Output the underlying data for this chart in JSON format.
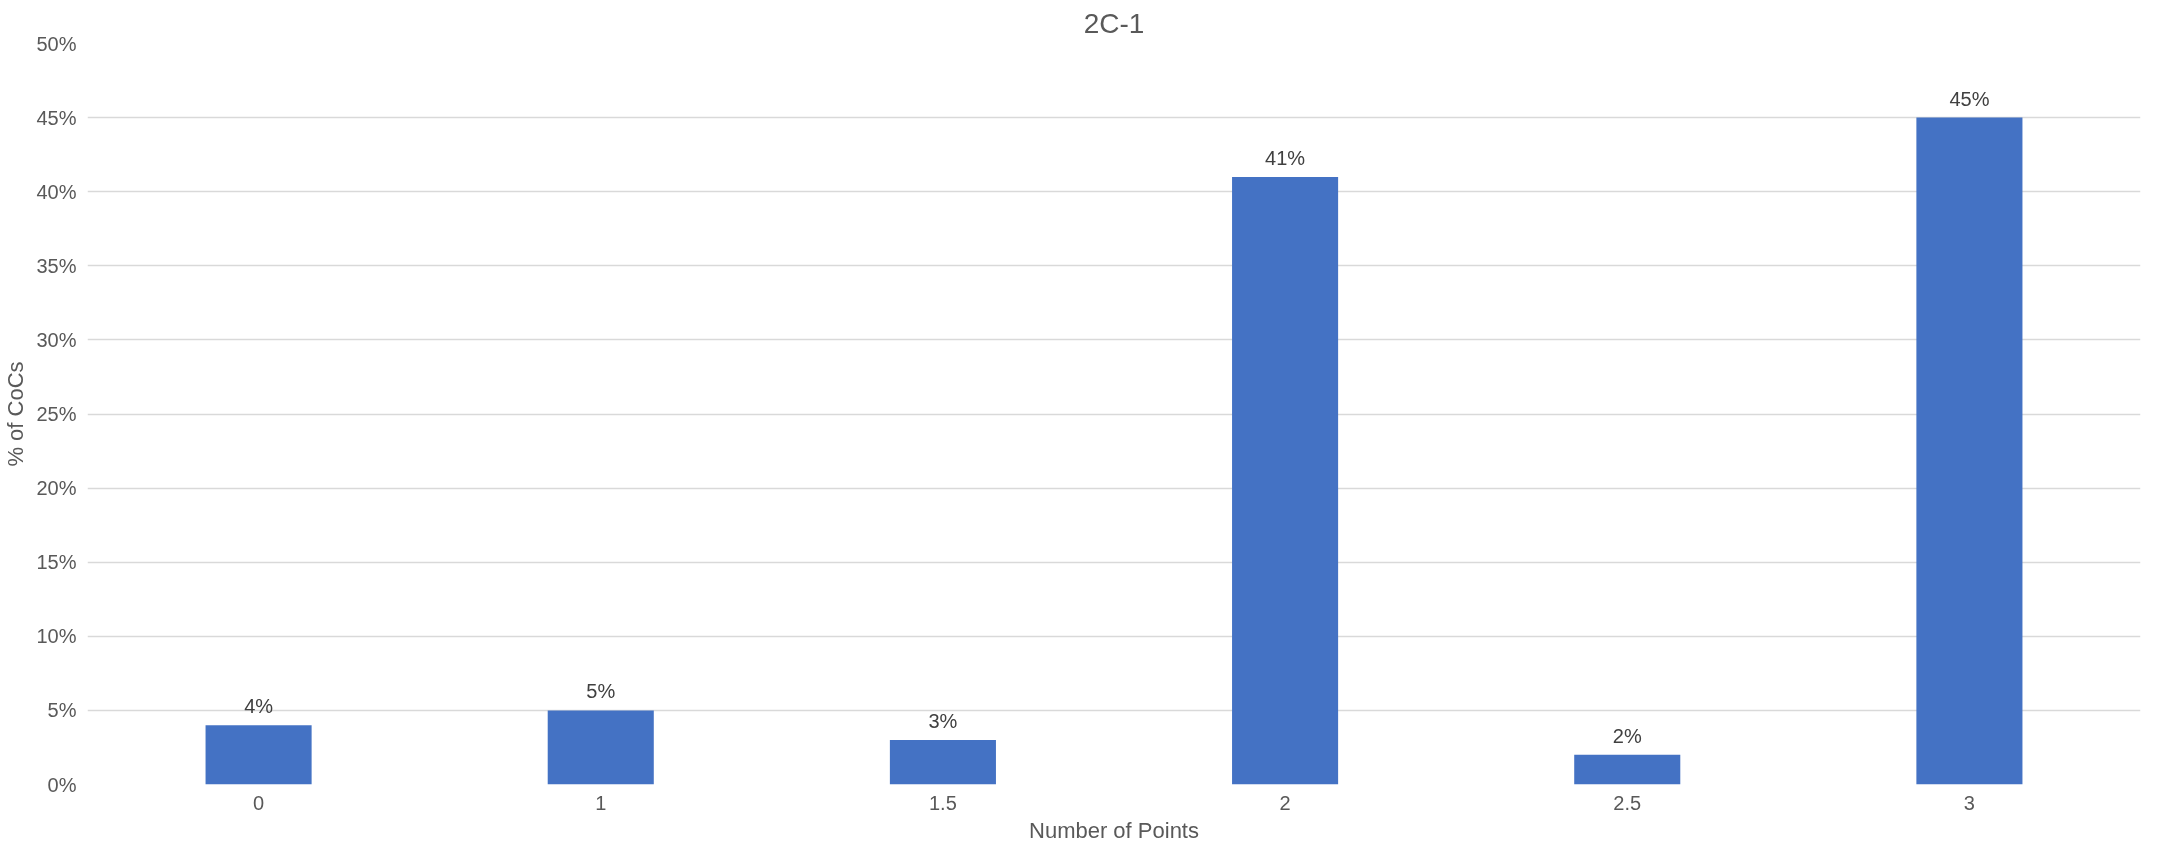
{
  "chart_data": {
    "type": "bar",
    "title": "2C-1",
    "xlabel": "Number of Points",
    "ylabel": "% of CoCs",
    "categories": [
      "0",
      "1",
      "1.5",
      "2",
      "2.5",
      "3"
    ],
    "values": [
      4,
      5,
      3,
      41,
      2,
      45
    ],
    "color": "#4472c4",
    "value_labels": [
      "4%",
      "5%",
      "3%",
      "41%",
      "2%",
      "45%"
    ],
    "ylim": [
      0,
      50
    ],
    "yticks": [
      {
        "value": 0,
        "label": "0%"
      },
      {
        "value": 5,
        "label": "5%"
      },
      {
        "value": 10,
        "label": "10%"
      },
      {
        "value": 15,
        "label": "15%"
      },
      {
        "value": 20,
        "label": "20%"
      },
      {
        "value": 25,
        "label": "25%"
      },
      {
        "value": 30,
        "label": "30%"
      },
      {
        "value": 35,
        "label": "35%"
      },
      {
        "value": 40,
        "label": "40%"
      },
      {
        "value": 45,
        "label": "45%"
      },
      {
        "value": 50,
        "label": "50%"
      }
    ],
    "grid": "y"
  }
}
